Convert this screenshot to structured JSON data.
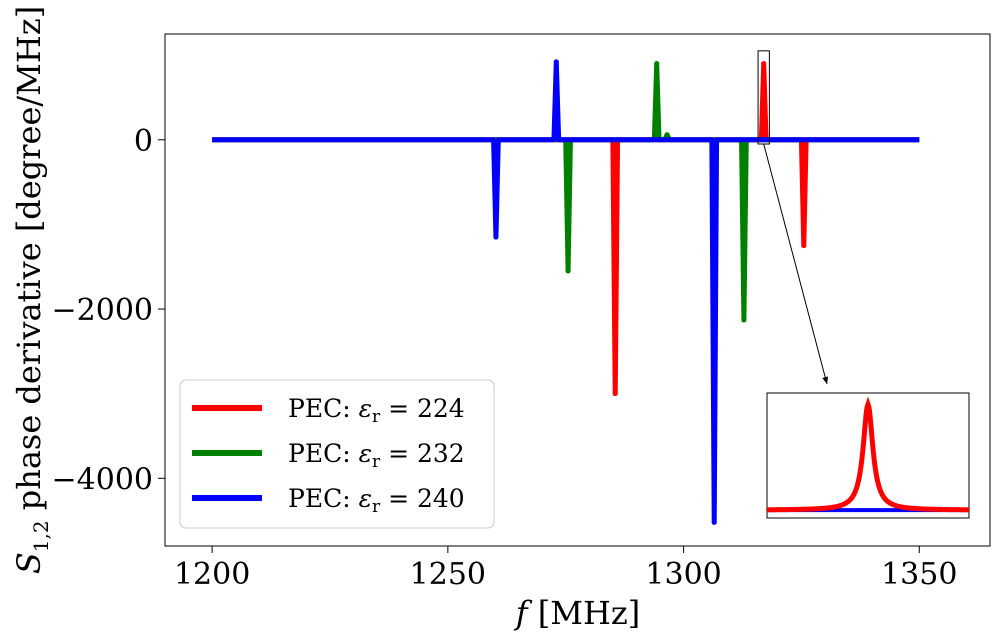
{
  "chart_data": {
    "type": "line",
    "xlabel": "f [MHz]",
    "ylabel": "S1,2 phase derivative [degree/MHz]",
    "xlim": [
      1200,
      1350
    ],
    "ylim": [
      -4800,
      1250
    ],
    "xticks": [
      1200,
      1250,
      1300,
      1350
    ],
    "xtick_labels": [
      "1200",
      "1250",
      "1300",
      "1350"
    ],
    "yticks": [
      0,
      -2000,
      -4000
    ],
    "ytick_labels": [
      "0",
      "−2000",
      "−4000"
    ],
    "grid": false,
    "legend_position": "lower-left",
    "x_range_plotted": [
      1200,
      1350
    ],
    "series": [
      {
        "name": "PEC: εr = 224",
        "color": "#ff0000",
        "spikes": [
          {
            "x": 1285.5,
            "y": -3000
          },
          {
            "x": 1317.0,
            "y": 900
          },
          {
            "x": 1325.5,
            "y": -1250
          }
        ]
      },
      {
        "name": "PEC: εr = 232",
        "color": "#008000",
        "spikes": [
          {
            "x": 1275.5,
            "y": -1550
          },
          {
            "x": 1294.3,
            "y": 900
          },
          {
            "x": 1296.5,
            "y": 60
          },
          {
            "x": 1312.8,
            "y": -2130
          }
        ]
      },
      {
        "name": "PEC: εr = 240",
        "color": "#0000ff",
        "spikes": [
          {
            "x": 1260.2,
            "y": -1150
          },
          {
            "x": 1273.0,
            "y": 920
          },
          {
            "x": 1306.5,
            "y": -4520
          }
        ]
      }
    ],
    "inset": {
      "zoom_of_x": [
        1315.8,
        1318.2
      ],
      "zoom_of_y": [
        -50,
        980
      ],
      "description_series": [
        "PEC: εr = 224",
        "PEC: εr = 240"
      ]
    }
  }
}
